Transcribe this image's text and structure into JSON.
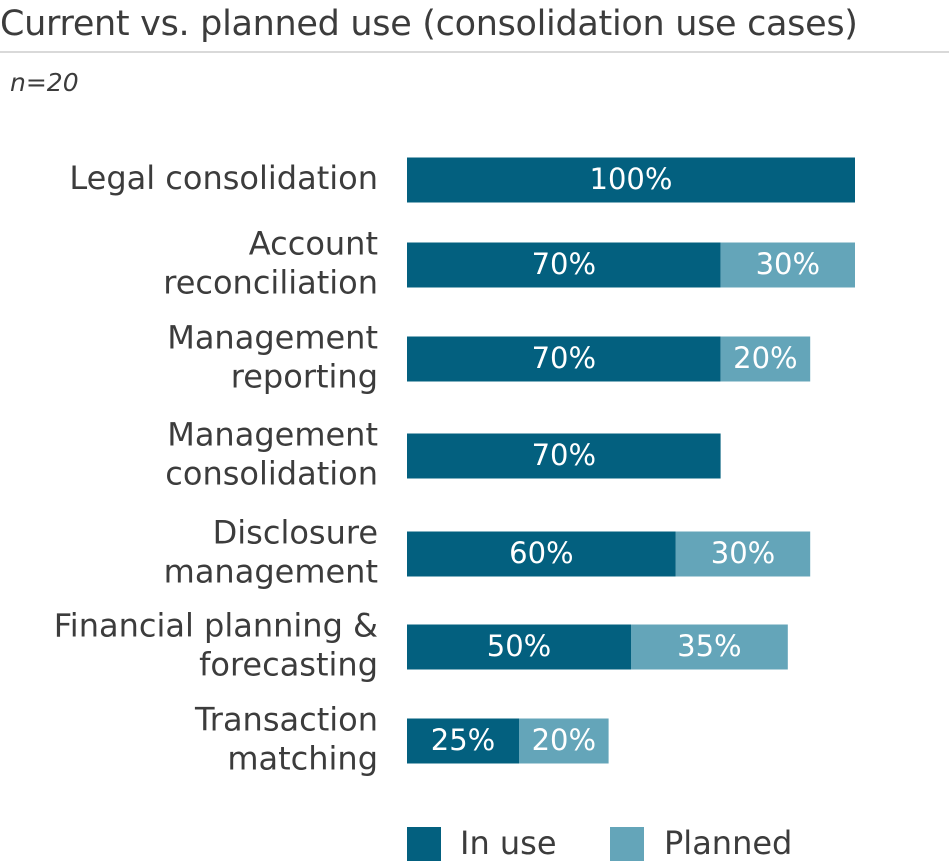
{
  "header": {
    "title": "Current vs. planned use (consolidation use cases)",
    "subtitle": "n=20"
  },
  "colors": {
    "in_use": "#03607f",
    "planned": "#64a5b9"
  },
  "chart_data": {
    "type": "bar",
    "orientation": "horizontal",
    "stacked": true,
    "title": "Current vs. planned use (consolidation use cases)",
    "subtitle": "n=20",
    "unit": "%",
    "xlim": [
      0,
      100
    ],
    "grid": false,
    "legend_position": "bottom",
    "categories": [
      [
        "Legal consolidation"
      ],
      [
        "Account",
        "reconciliation"
      ],
      [
        "Management",
        "reporting"
      ],
      [
        "Management",
        "consolidation"
      ],
      [
        "Disclosure",
        "management"
      ],
      [
        "Financial planning &",
        "forecasting"
      ],
      [
        "Transaction",
        "matching"
      ]
    ],
    "series": [
      {
        "name": "In use",
        "color": "#03607f",
        "values": [
          100,
          70,
          70,
          70,
          60,
          50,
          25
        ],
        "labels": [
          "100%",
          "70%",
          "70%",
          "70%",
          "60%",
          "50%",
          "25%"
        ]
      },
      {
        "name": "Planned",
        "color": "#64a5b9",
        "values": [
          0,
          30,
          20,
          0,
          30,
          35,
          20
        ],
        "labels": [
          "",
          "30%",
          "20%",
          "",
          "30%",
          "35%",
          "20%"
        ]
      }
    ]
  }
}
